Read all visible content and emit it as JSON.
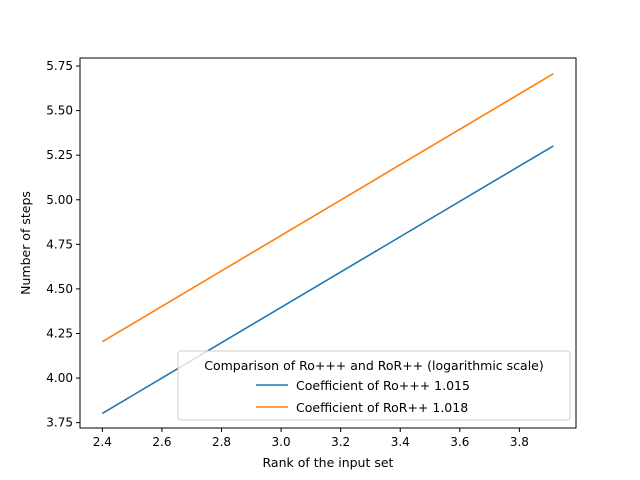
{
  "chart_data": {
    "type": "line",
    "title": "",
    "xlabel": "Rank of the input set",
    "ylabel": "Number of steps",
    "xlim": [
      2.325,
      3.99
    ],
    "ylim": [
      3.72,
      5.795
    ],
    "xticks": [
      2.4,
      2.6,
      2.8,
      3.0,
      3.2,
      3.4,
      3.6,
      3.8
    ],
    "xtick_labels": [
      "2.4",
      "2.6",
      "2.8",
      "3.0",
      "3.2",
      "3.4",
      "3.6",
      "3.8"
    ],
    "yticks": [
      3.75,
      4.0,
      4.25,
      4.5,
      4.75,
      5.0,
      5.25,
      5.5,
      5.75
    ],
    "ytick_labels": [
      "3.75",
      "4.00",
      "4.25",
      "4.50",
      "4.75",
      "5.00",
      "5.25",
      "5.50",
      "5.75"
    ],
    "grid": false,
    "legend": {
      "title": "Comparison of Ro+++ and RoR++ (logarithmic scale)",
      "placement": "lower right"
    },
    "series": [
      {
        "name": "Coefficient of Ro+++ 1.015",
        "color": "#1f77b4",
        "x": [
          2.4,
          3.914
        ],
        "y": [
          3.802,
          5.302
        ]
      },
      {
        "name": "Coefficient of RoR++ 1.018",
        "color": "#ff7f0e",
        "x": [
          2.4,
          3.914
        ],
        "y": [
          4.204,
          5.707
        ]
      }
    ]
  }
}
